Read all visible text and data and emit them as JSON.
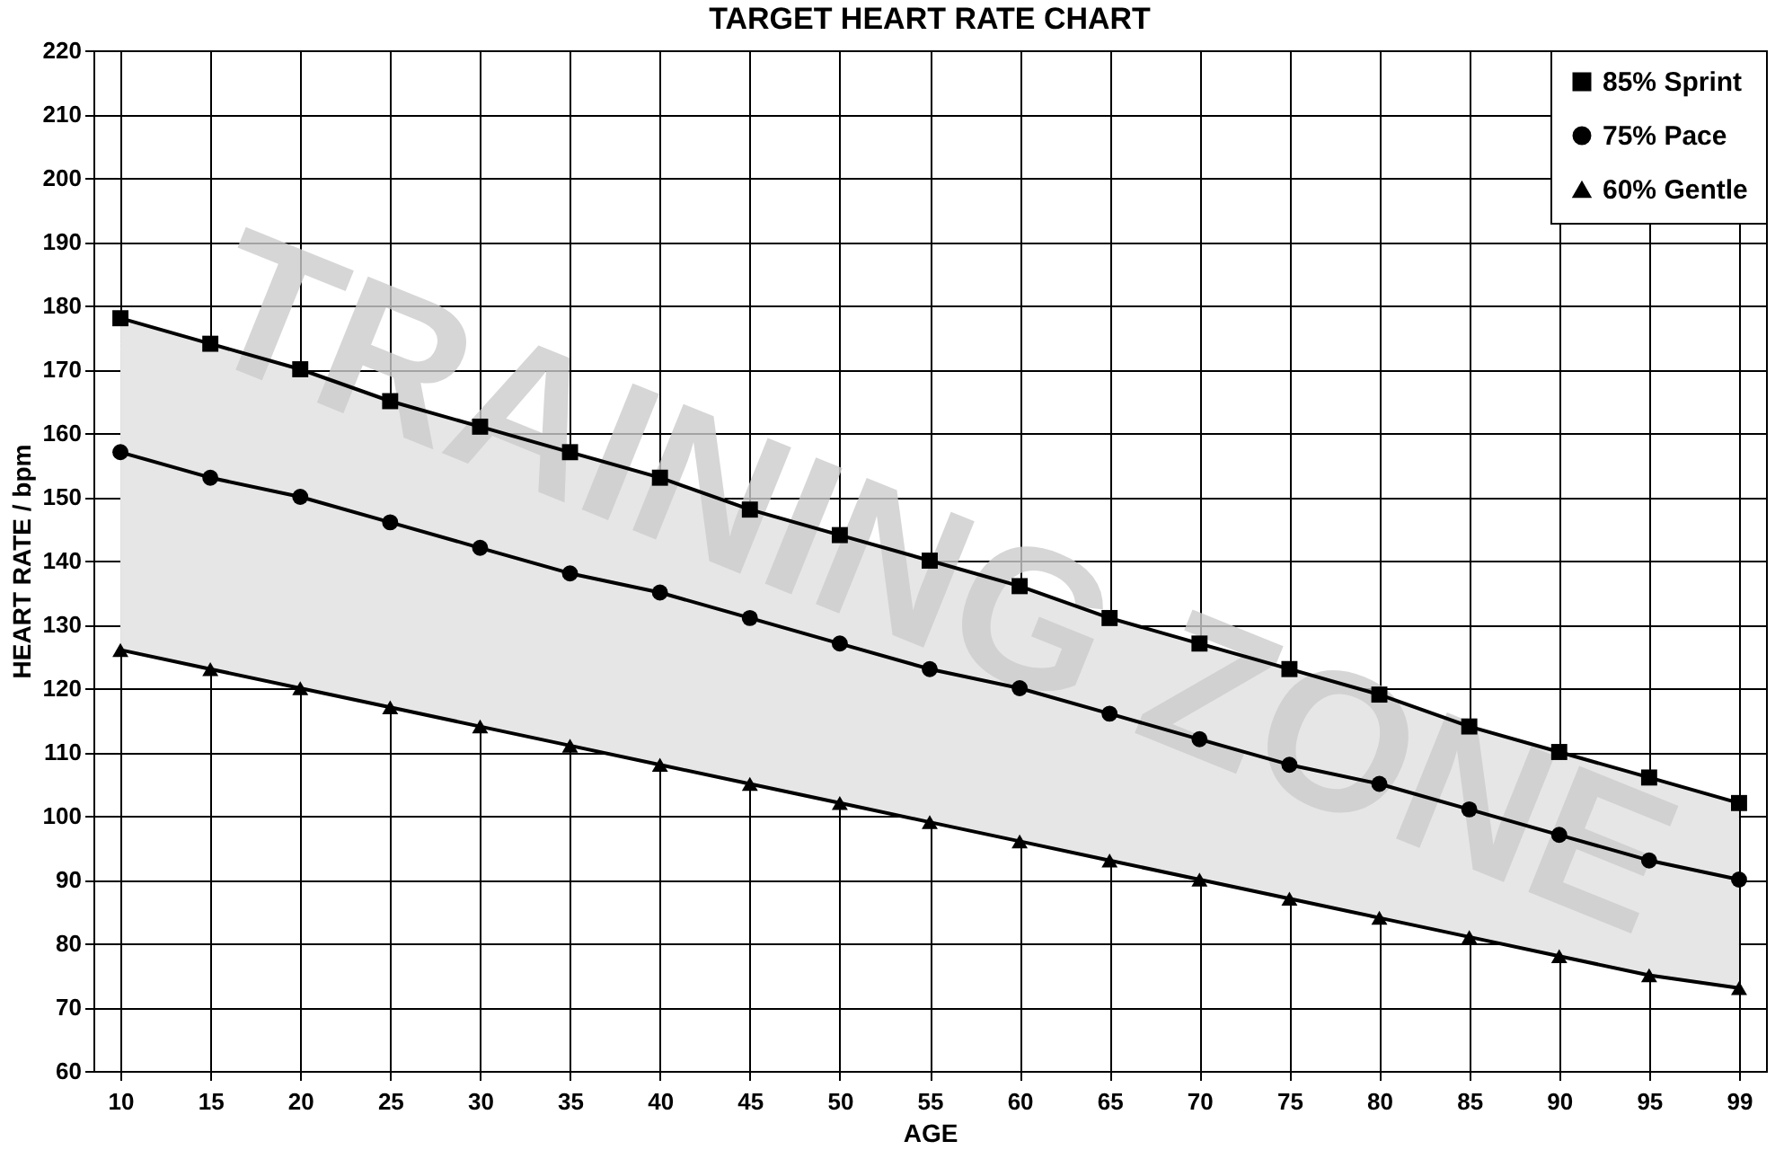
{
  "chart_data": {
    "type": "line",
    "title": "TARGET HEART RATE CHART",
    "xlabel": "AGE",
    "ylabel": "HEART RATE / bpm",
    "categories": [
      "10",
      "15",
      "20",
      "25",
      "30",
      "35",
      "40",
      "45",
      "50",
      "55",
      "60",
      "65",
      "70",
      "75",
      "80",
      "85",
      "90",
      "95",
      "99"
    ],
    "series": [
      {
        "name": "85% Sprint",
        "color": "#000000",
        "marker": "square",
        "values": [
          178,
          174,
          170,
          165,
          161,
          157,
          153,
          148,
          144,
          140,
          136,
          131,
          127,
          123,
          119,
          114,
          110,
          106,
          102
        ]
      },
      {
        "name": "75% Pace",
        "color": "#000000",
        "marker": "circle",
        "values": [
          157,
          153,
          150,
          146,
          142,
          138,
          135,
          131,
          127,
          123,
          120,
          116,
          112,
          108,
          105,
          101,
          97,
          93,
          90
        ],
        "lower": [
          126,
          123,
          120,
          117,
          114,
          111,
          108,
          105,
          102,
          99,
          96,
          93,
          90,
          87,
          84,
          81,
          78,
          75,
          73
        ],
        "upper": [
          178,
          174,
          170,
          165,
          161,
          157,
          153,
          148,
          144,
          140,
          136,
          131,
          127,
          123,
          119,
          114,
          110,
          106,
          102
        ]
      },
      {
        "name": "60% Gentle",
        "color": "#000000",
        "marker": "triangle",
        "values": [
          126,
          123,
          120,
          117,
          114,
          111,
          108,
          105,
          102,
          99,
          96,
          93,
          90,
          87,
          84,
          81,
          78,
          75,
          73
        ]
      }
    ],
    "ylim": [
      60,
      220
    ],
    "yticks": [
      60,
      70,
      80,
      90,
      100,
      110,
      120,
      130,
      140,
      150,
      160,
      170,
      180,
      190,
      200,
      210,
      220
    ],
    "grid": true,
    "legend": "top right",
    "annotations": [
      "TRAINING ZONE"
    ]
  }
}
